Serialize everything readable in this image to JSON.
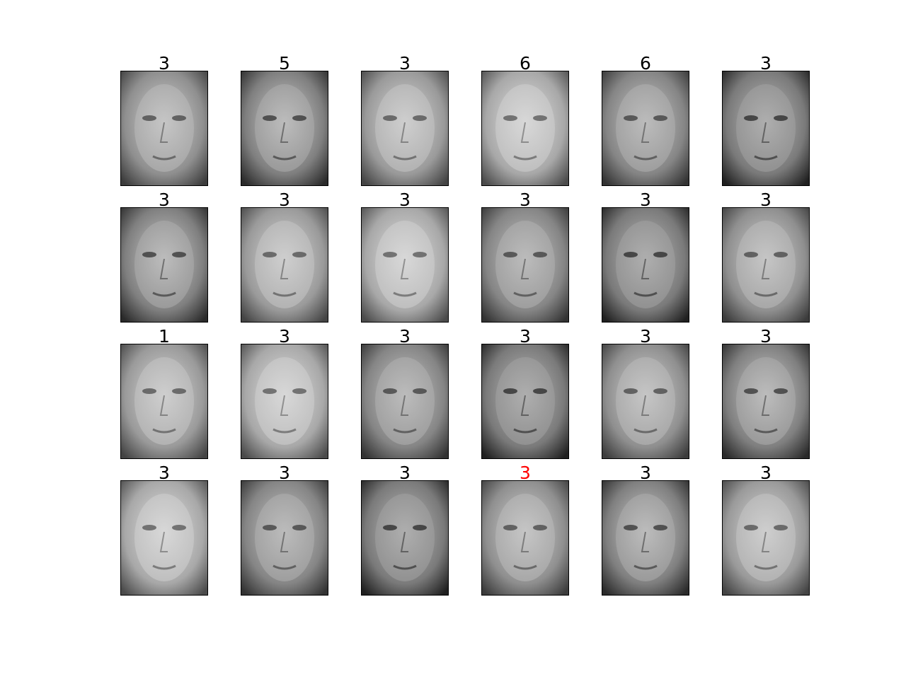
{
  "colors": {
    "label_default": "#000000",
    "label_mismatch": "#ff0000",
    "thumbnail_palette": "grayscale"
  },
  "grid": {
    "rows": 4,
    "cols": 6
  },
  "panels": [
    {
      "label": "3",
      "mismatch": false
    },
    {
      "label": "5",
      "mismatch": false
    },
    {
      "label": "3",
      "mismatch": false
    },
    {
      "label": "6",
      "mismatch": false
    },
    {
      "label": "6",
      "mismatch": false
    },
    {
      "label": "3",
      "mismatch": false
    },
    {
      "label": "3",
      "mismatch": false
    },
    {
      "label": "3",
      "mismatch": false
    },
    {
      "label": "3",
      "mismatch": false
    },
    {
      "label": "3",
      "mismatch": false
    },
    {
      "label": "3",
      "mismatch": false
    },
    {
      "label": "3",
      "mismatch": false
    },
    {
      "label": "1",
      "mismatch": false
    },
    {
      "label": "3",
      "mismatch": false
    },
    {
      "label": "3",
      "mismatch": false
    },
    {
      "label": "3",
      "mismatch": false
    },
    {
      "label": "3",
      "mismatch": false
    },
    {
      "label": "3",
      "mismatch": false
    },
    {
      "label": "3",
      "mismatch": false
    },
    {
      "label": "3",
      "mismatch": false
    },
    {
      "label": "3",
      "mismatch": false
    },
    {
      "label": "3",
      "mismatch": true
    },
    {
      "label": "3",
      "mismatch": false
    },
    {
      "label": "3",
      "mismatch": false
    }
  ]
}
